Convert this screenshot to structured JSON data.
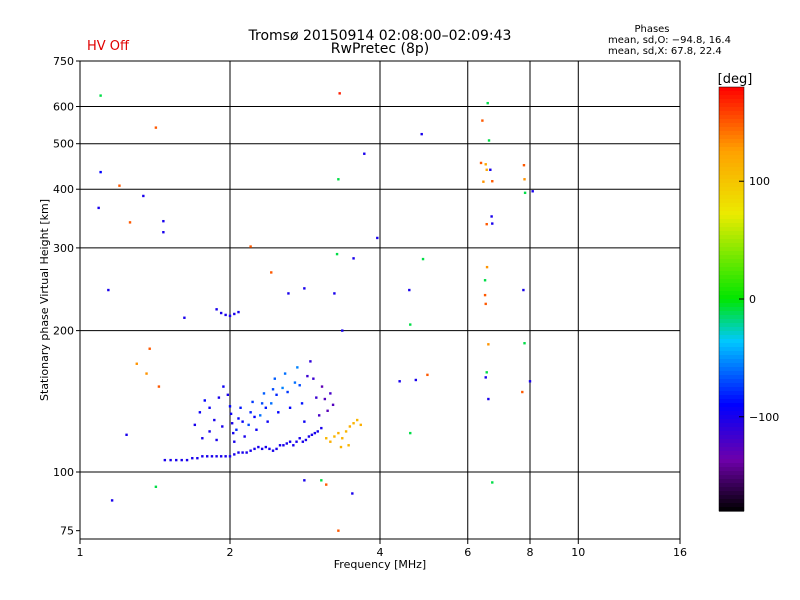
{
  "header": {
    "title": "Tromsø 20150914 02:08:00–02:09:43",
    "subtitle": "RwPretec (8p)",
    "hv_status": "HV Off",
    "phases_title": "Phases",
    "phases_line1": "mean, sd,O: −94.8, 16.4",
    "phases_line2": "mean, sd,X:  67.8, 22.4"
  },
  "colorbar": {
    "label": "[deg]",
    "min": -180,
    "max": 180,
    "ticks": [
      {
        "value": 100,
        "label": "100"
      },
      {
        "value": 0,
        "label": "0"
      },
      {
        "value": -100,
        "label": "−100"
      }
    ]
  },
  "chart_data": {
    "type": "scatter",
    "xlabel": "Frequency [MHz]",
    "ylabel": "Stationary phase Virtual Height [km]",
    "xscale": "log",
    "yscale": "log",
    "xlim": [
      1,
      16
    ],
    "ylim": [
      72,
      750
    ],
    "xticks": [
      {
        "value": 1,
        "label": "1"
      },
      {
        "value": 2,
        "label": "2"
      },
      {
        "value": 4,
        "label": "4"
      },
      {
        "value": 6,
        "label": "6"
      },
      {
        "value": 8,
        "label": "8"
      },
      {
        "value": 10,
        "label": "10"
      },
      {
        "value": 16,
        "label": "16"
      }
    ],
    "yticks": [
      {
        "value": 75,
        "label": "75"
      },
      {
        "value": 100,
        "label": "100"
      },
      {
        "value": 200,
        "label": "200"
      },
      {
        "value": 300,
        "label": "300"
      },
      {
        "value": 400,
        "label": "400"
      },
      {
        "value": 500,
        "label": "500"
      },
      {
        "value": 600,
        "label": "600"
      },
      {
        "value": 750,
        "label": "750"
      }
    ],
    "vgrid": [
      2,
      4,
      6,
      8,
      10
    ],
    "hgrid": [
      100,
      200,
      300,
      400,
      500,
      600
    ],
    "grid": true,
    "points": [
      [
        1.48,
        106,
        -100
      ],
      [
        1.52,
        106,
        -100
      ],
      [
        1.56,
        106,
        -100
      ],
      [
        1.6,
        106,
        -100
      ],
      [
        1.64,
        106,
        -100
      ],
      [
        1.68,
        107,
        -100
      ],
      [
        1.72,
        107,
        -100
      ],
      [
        1.76,
        108,
        -100
      ],
      [
        1.8,
        108,
        -100
      ],
      [
        1.84,
        108,
        -100
      ],
      [
        1.88,
        108,
        -100
      ],
      [
        1.92,
        108,
        -100
      ],
      [
        1.96,
        108,
        -100
      ],
      [
        2.0,
        108,
        -100
      ],
      [
        2.04,
        109,
        -100
      ],
      [
        2.08,
        110,
        -100
      ],
      [
        2.12,
        110,
        -100
      ],
      [
        2.16,
        110,
        -100
      ],
      [
        2.2,
        111,
        -100
      ],
      [
        2.24,
        112,
        -100
      ],
      [
        2.28,
        113,
        -100
      ],
      [
        2.32,
        112,
        -100
      ],
      [
        2.36,
        113,
        -100
      ],
      [
        2.4,
        112,
        -100
      ],
      [
        2.44,
        111,
        -100
      ],
      [
        2.48,
        112,
        -100
      ],
      [
        2.52,
        114,
        -100
      ],
      [
        2.56,
        114,
        -100
      ],
      [
        2.6,
        115,
        -100
      ],
      [
        2.64,
        116,
        -100
      ],
      [
        2.68,
        114,
        -100
      ],
      [
        2.72,
        116,
        -100
      ],
      [
        2.76,
        118,
        -100
      ],
      [
        2.8,
        116,
        -100
      ],
      [
        2.84,
        117,
        -100
      ],
      [
        2.88,
        119,
        -100
      ],
      [
        2.92,
        120,
        -100
      ],
      [
        2.96,
        121,
        -100
      ],
      [
        3.0,
        122,
        -100
      ],
      [
        3.05,
        124,
        -100
      ],
      [
        2.0,
        138,
        -90
      ],
      [
        2.01,
        133,
        -95
      ],
      [
        2.02,
        127,
        -100
      ],
      [
        2.03,
        121,
        -98
      ],
      [
        2.04,
        116,
        -100
      ],
      [
        2.06,
        123,
        -80
      ],
      [
        2.08,
        130,
        -90
      ],
      [
        2.1,
        137,
        -85
      ],
      [
        2.12,
        128,
        -92
      ],
      [
        2.14,
        119,
        -100
      ],
      [
        2.18,
        126,
        -70
      ],
      [
        2.2,
        134,
        -80
      ],
      [
        2.22,
        141,
        -75
      ],
      [
        2.24,
        131,
        -90
      ],
      [
        2.26,
        123,
        -95
      ],
      [
        2.3,
        132,
        -60
      ],
      [
        2.32,
        140,
        -70
      ],
      [
        2.34,
        147,
        -65
      ],
      [
        2.36,
        137,
        -85
      ],
      [
        2.38,
        128,
        -95
      ],
      [
        2.42,
        140,
        -60
      ],
      [
        2.44,
        150,
        -70
      ],
      [
        2.46,
        158,
        -65
      ],
      [
        2.48,
        146,
        -80
      ],
      [
        2.5,
        134,
        -90
      ],
      [
        2.55,
        151,
        -55
      ],
      [
        2.58,
        162,
        -60
      ],
      [
        2.61,
        148,
        -75
      ],
      [
        2.64,
        137,
        -90
      ],
      [
        2.7,
        155,
        -60
      ],
      [
        2.73,
        167,
        -55
      ],
      [
        2.76,
        153,
        -70
      ],
      [
        2.79,
        140,
        -85
      ],
      [
        2.82,
        128,
        -95
      ],
      [
        2.86,
        160,
        -115
      ],
      [
        2.9,
        172,
        -110
      ],
      [
        2.94,
        158,
        -115
      ],
      [
        2.98,
        144,
        -115
      ],
      [
        3.02,
        132,
        -120
      ],
      [
        3.06,
        152,
        -130
      ],
      [
        3.1,
        143,
        -125
      ],
      [
        3.14,
        135,
        -128
      ],
      [
        3.18,
        147,
        -120
      ],
      [
        3.22,
        139,
        -125
      ],
      [
        1.7,
        126,
        -100
      ],
      [
        1.74,
        134,
        -95
      ],
      [
        1.78,
        142,
        -90
      ],
      [
        1.82,
        137,
        -95
      ],
      [
        1.86,
        129,
        -100
      ],
      [
        1.9,
        144,
        -100
      ],
      [
        1.94,
        152,
        -95
      ],
      [
        1.98,
        146,
        -100
      ],
      [
        1.76,
        118,
        -100
      ],
      [
        1.82,
        122,
        -100
      ],
      [
        1.88,
        117,
        -100
      ],
      [
        1.93,
        125,
        -100
      ],
      [
        3.12,
        118,
        110
      ],
      [
        3.18,
        116,
        115
      ],
      [
        3.24,
        119,
        110
      ],
      [
        3.3,
        121,
        115
      ],
      [
        3.36,
        118,
        112
      ],
      [
        3.42,
        122,
        110
      ],
      [
        3.48,
        125,
        115
      ],
      [
        3.54,
        127,
        112
      ],
      [
        3.6,
        129,
        110
      ],
      [
        3.66,
        126,
        115
      ],
      [
        3.34,
        113,
        112
      ],
      [
        3.46,
        114,
        110
      ],
      [
        1.92,
        218,
        -100
      ],
      [
        1.96,
        216,
        -100
      ],
      [
        2.0,
        215,
        -100
      ],
      [
        2.04,
        217,
        -100
      ],
      [
        2.08,
        219,
        -100
      ],
      [
        1.88,
        222,
        -100
      ],
      [
        1.62,
        213,
        -100
      ],
      [
        1.1,
        633,
        -10
      ],
      [
        1.1,
        435,
        -90
      ],
      [
        1.09,
        365,
        -100
      ],
      [
        1.14,
        244,
        -100
      ],
      [
        1.2,
        407,
        150
      ],
      [
        1.26,
        340,
        150
      ],
      [
        1.34,
        387,
        -100
      ],
      [
        1.42,
        541,
        150
      ],
      [
        1.47,
        342,
        -100
      ],
      [
        1.47,
        324,
        -100
      ],
      [
        1.24,
        120,
        -100
      ],
      [
        1.3,
        170,
        130
      ],
      [
        1.36,
        162,
        130
      ],
      [
        1.38,
        183,
        150
      ],
      [
        1.44,
        152,
        150
      ],
      [
        1.42,
        93,
        -10
      ],
      [
        1.16,
        87,
        -100
      ],
      [
        2.2,
        302,
        150
      ],
      [
        2.42,
        266,
        150
      ],
      [
        2.82,
        246,
        -100
      ],
      [
        2.62,
        240,
        -100
      ],
      [
        3.32,
        640,
        170
      ],
      [
        3.3,
        420,
        -10
      ],
      [
        3.72,
        476,
        -100
      ],
      [
        3.95,
        315,
        -100
      ],
      [
        4.85,
        524,
        -100
      ],
      [
        4.88,
        284,
        -10
      ],
      [
        4.58,
        244,
        -100
      ],
      [
        4.6,
        206,
        -10
      ],
      [
        3.28,
        291,
        -10
      ],
      [
        3.54,
        285,
        -100
      ],
      [
        3.24,
        240,
        -100
      ],
      [
        3.36,
        200,
        -100
      ],
      [
        2.82,
        96,
        -100
      ],
      [
        3.05,
        96,
        -10
      ],
      [
        3.12,
        94,
        150
      ],
      [
        3.3,
        75,
        150
      ],
      [
        3.52,
        90,
        -100
      ],
      [
        4.38,
        156,
        -100
      ],
      [
        4.72,
        157,
        -100
      ],
      [
        4.98,
        161,
        150
      ],
      [
        4.6,
        121,
        -10
      ],
      [
        6.42,
        560,
        150
      ],
      [
        6.38,
        455,
        150
      ],
      [
        6.45,
        415,
        130
      ],
      [
        6.52,
        452,
        120
      ],
      [
        6.55,
        440,
        120
      ],
      [
        6.58,
        610,
        -10
      ],
      [
        6.62,
        508,
        -10
      ],
      [
        6.66,
        440,
        -100
      ],
      [
        6.72,
        416,
        150
      ],
      [
        6.7,
        350,
        -100
      ],
      [
        6.72,
        338,
        -100
      ],
      [
        6.55,
        337,
        150
      ],
      [
        6.56,
        273,
        130
      ],
      [
        6.5,
        256,
        -10
      ],
      [
        6.5,
        238,
        150
      ],
      [
        6.52,
        228,
        150
      ],
      [
        6.6,
        187,
        130
      ],
      [
        6.55,
        163,
        -10
      ],
      [
        6.52,
        159,
        -100
      ],
      [
        6.6,
        143,
        -100
      ],
      [
        6.72,
        95,
        -10
      ],
      [
        7.78,
        450,
        150
      ],
      [
        7.8,
        420,
        130
      ],
      [
        7.82,
        393,
        -10
      ],
      [
        8.1,
        396,
        -100
      ],
      [
        7.76,
        244,
        -100
      ],
      [
        7.8,
        188,
        -10
      ],
      [
        8.0,
        156,
        -100
      ],
      [
        7.72,
        148,
        150
      ]
    ]
  }
}
